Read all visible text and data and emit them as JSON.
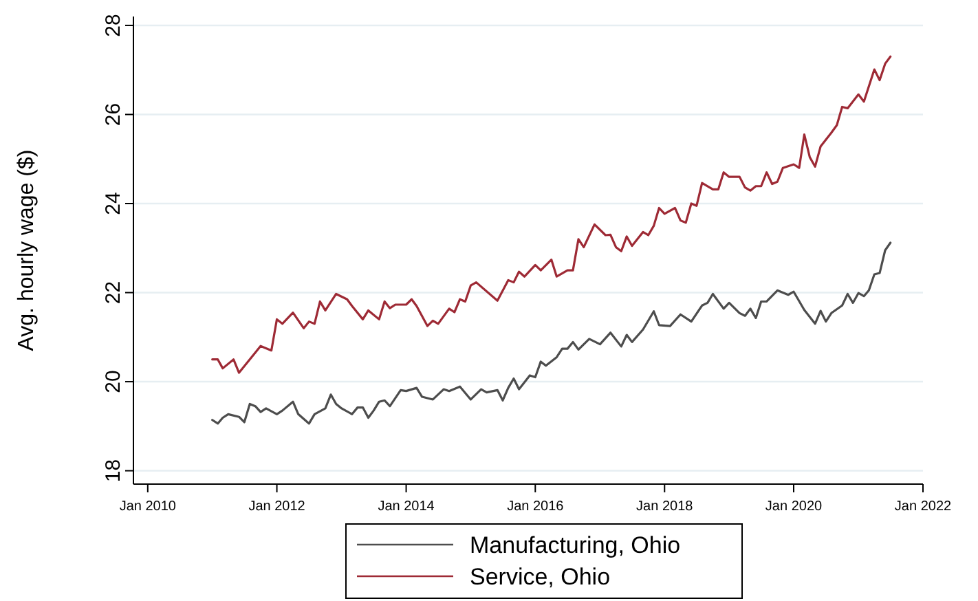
{
  "chart_data": {
    "type": "line",
    "ylabel": "Avg. hourly wage ($)",
    "xlim": [
      "2009-10-12",
      "2022-01-01"
    ],
    "ylim": [
      17.7,
      28.2
    ],
    "xticks": [
      {
        "value": "2010-01",
        "label": "Jan 2010"
      },
      {
        "value": "2012-01",
        "label": "Jan 2012"
      },
      {
        "value": "2014-01",
        "label": "Jan 2014"
      },
      {
        "value": "2016-01",
        "label": "Jan 2016"
      },
      {
        "value": "2018-01",
        "label": "Jan 2018"
      },
      {
        "value": "2020-01",
        "label": "Jan 2020"
      },
      {
        "value": "2022-01",
        "label": "Jan 2022"
      }
    ],
    "yticks": [
      18,
      20,
      22,
      24,
      26,
      28
    ],
    "grid": "y",
    "legend": "bottom",
    "marker": "none",
    "line_style": "solid",
    "series": [
      {
        "name": "Manufacturing, Ohio",
        "color": "#4d4d4d",
        "x": [
          "2011-01",
          "2011-02",
          "2011-03",
          "2011-04",
          "2011-06",
          "2011-07",
          "2011-08",
          "2011-09",
          "2011-10",
          "2011-11",
          "2012-01",
          "2012-02",
          "2012-04",
          "2012-05",
          "2012-07",
          "2012-08",
          "2012-10",
          "2012-11",
          "2012-12",
          "2013-01",
          "2013-03",
          "2013-04",
          "2013-05",
          "2013-06",
          "2013-07",
          "2013-08",
          "2013-09",
          "2013-10",
          "2013-12",
          "2014-01",
          "2014-03",
          "2014-04",
          "2014-06",
          "2014-08",
          "2014-09",
          "2014-11",
          "2015-01",
          "2015-03",
          "2015-04",
          "2015-06",
          "2015-07",
          "2015-08",
          "2015-09",
          "2015-10",
          "2015-12",
          "2016-01",
          "2016-02",
          "2016-03",
          "2016-05",
          "2016-06",
          "2016-07",
          "2016-08",
          "2016-09",
          "2016-11",
          "2017-01",
          "2017-03",
          "2017-05",
          "2017-06",
          "2017-07",
          "2017-09",
          "2017-11",
          "2017-12",
          "2018-02",
          "2018-04",
          "2018-06",
          "2018-08",
          "2018-09",
          "2018-10",
          "2018-12",
          "2019-01",
          "2019-03",
          "2019-04",
          "2019-05",
          "2019-06",
          "2019-07",
          "2019-08",
          "2019-10",
          "2019-12",
          "2020-01",
          "2020-03",
          "2020-05",
          "2020-06",
          "2020-07",
          "2020-08",
          "2020-10",
          "2020-11",
          "2020-12",
          "2021-01",
          "2021-02",
          "2021-03",
          "2021-04",
          "2021-05",
          "2021-06",
          "2021-07"
        ],
        "values": [
          19.14,
          19.06,
          19.19,
          19.27,
          19.21,
          19.09,
          19.5,
          19.45,
          19.32,
          19.4,
          19.27,
          19.35,
          19.55,
          19.27,
          19.06,
          19.27,
          19.4,
          19.71,
          19.5,
          19.4,
          19.27,
          19.42,
          19.42,
          19.19,
          19.35,
          19.55,
          19.58,
          19.45,
          19.81,
          19.79,
          19.86,
          19.66,
          19.6,
          19.83,
          19.79,
          19.89,
          19.6,
          19.83,
          19.76,
          19.81,
          19.58,
          19.86,
          20.07,
          19.83,
          20.14,
          20.1,
          20.45,
          20.36,
          20.55,
          20.74,
          20.74,
          20.89,
          20.72,
          20.96,
          20.84,
          21.1,
          20.79,
          21.05,
          20.89,
          21.17,
          21.58,
          21.27,
          21.25,
          21.51,
          21.35,
          21.71,
          21.77,
          21.97,
          21.64,
          21.77,
          21.54,
          21.48,
          21.64,
          21.43,
          21.8,
          21.8,
          22.05,
          21.95,
          22.02,
          21.61,
          21.3,
          21.59,
          21.35,
          21.54,
          21.71,
          21.97,
          21.77,
          21.99,
          21.92,
          22.05,
          22.41,
          22.44,
          22.95,
          23.12
        ]
      },
      {
        "name": "Service, Ohio",
        "color": "#9e2a35",
        "x": [
          "2011-01",
          "2011-02",
          "2011-03",
          "2011-05",
          "2011-06",
          "2011-10",
          "2011-12",
          "2012-01",
          "2012-02",
          "2012-04",
          "2012-06",
          "2012-07",
          "2012-08",
          "2012-09",
          "2012-10",
          "2012-12",
          "2013-02",
          "2013-03",
          "2013-05",
          "2013-06",
          "2013-08",
          "2013-09",
          "2013-10",
          "2013-11",
          "2014-01",
          "2014-02",
          "2014-03",
          "2014-05",
          "2014-06",
          "2014-07",
          "2014-09",
          "2014-10",
          "2014-11",
          "2014-12",
          "2015-01",
          "2015-02",
          "2015-06",
          "2015-08",
          "2015-09",
          "2015-10",
          "2015-11",
          "2016-01",
          "2016-02",
          "2016-04",
          "2016-05",
          "2016-07",
          "2016-08",
          "2016-09",
          "2016-10",
          "2016-12",
          "2017-02",
          "2017-03",
          "2017-04",
          "2017-05",
          "2017-06",
          "2017-07",
          "2017-09",
          "2017-10",
          "2017-11",
          "2017-12",
          "2018-01",
          "2018-03",
          "2018-04",
          "2018-05",
          "2018-06",
          "2018-07",
          "2018-08",
          "2018-10",
          "2018-11",
          "2018-12",
          "2019-01",
          "2019-03",
          "2019-04",
          "2019-05",
          "2019-06",
          "2019-07",
          "2019-08",
          "2019-09",
          "2019-10",
          "2019-11",
          "2020-01",
          "2020-02",
          "2020-03",
          "2020-04",
          "2020-05",
          "2020-06",
          "2020-08",
          "2020-09",
          "2020-10",
          "2020-11",
          "2021-01",
          "2021-02",
          "2021-04",
          "2021-05",
          "2021-06",
          "2021-07"
        ],
        "values": [
          20.5,
          20.5,
          20.3,
          20.5,
          20.2,
          20.8,
          20.7,
          21.4,
          21.3,
          21.55,
          21.2,
          21.35,
          21.3,
          21.8,
          21.6,
          21.97,
          21.85,
          21.7,
          21.4,
          21.6,
          21.4,
          21.8,
          21.65,
          21.73,
          21.73,
          21.85,
          21.7,
          21.25,
          21.37,
          21.3,
          21.64,
          21.56,
          21.85,
          21.8,
          22.16,
          22.23,
          21.82,
          22.28,
          22.23,
          22.47,
          22.36,
          22.62,
          22.5,
          22.74,
          22.36,
          22.5,
          22.5,
          23.2,
          23.02,
          23.53,
          23.29,
          23.3,
          23.02,
          22.93,
          23.26,
          23.05,
          23.36,
          23.29,
          23.5,
          23.9,
          23.77,
          23.9,
          23.62,
          23.57,
          24.0,
          23.95,
          24.46,
          24.32,
          24.32,
          24.7,
          24.6,
          24.6,
          24.36,
          24.29,
          24.39,
          24.39,
          24.7,
          24.44,
          24.49,
          24.8,
          24.88,
          24.8,
          25.55,
          25.04,
          24.83,
          25.28,
          25.59,
          25.76,
          26.17,
          26.14,
          26.45,
          26.29,
          27.01,
          26.77,
          27.14,
          27.3
        ]
      }
    ]
  }
}
